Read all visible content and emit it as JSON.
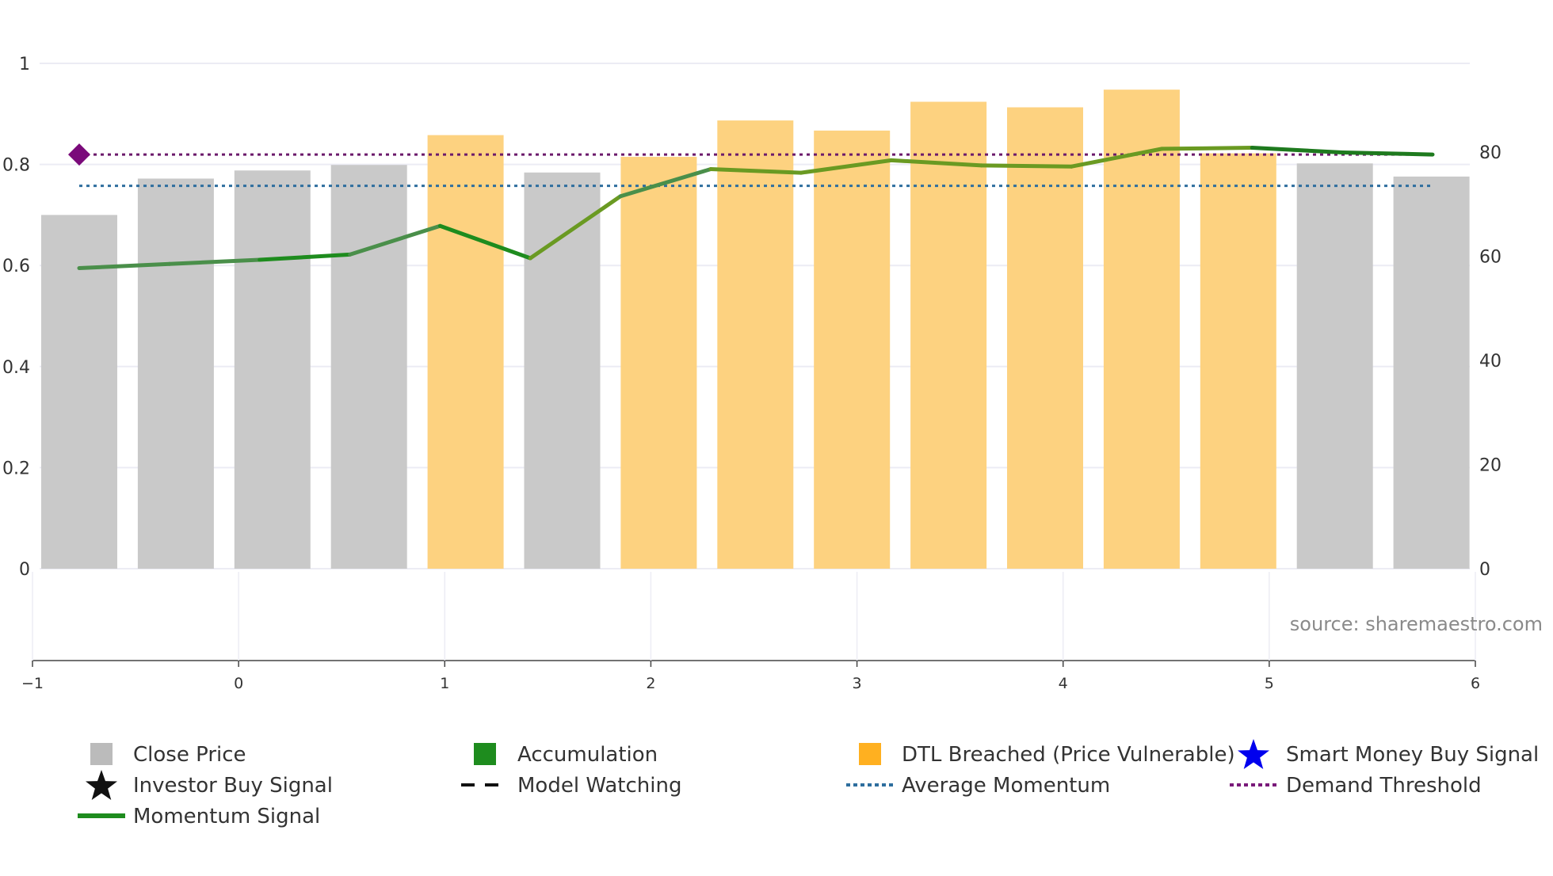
{
  "chart_data": {
    "type": "bar",
    "title": "",
    "source_label": "source: sharemaestro.com",
    "bars": [
      {
        "value": 0.7,
        "state": "close"
      },
      {
        "value": 0.772,
        "state": "close"
      },
      {
        "value": 0.788,
        "state": "close"
      },
      {
        "value": 0.799,
        "state": "close"
      },
      {
        "value": 0.858,
        "state": "dtl"
      },
      {
        "value": 0.784,
        "state": "close"
      },
      {
        "value": 0.815,
        "state": "dtl"
      },
      {
        "value": 0.887,
        "state": "dtl"
      },
      {
        "value": 0.867,
        "state": "dtl"
      },
      {
        "value": 0.924,
        "state": "dtl"
      },
      {
        "value": 0.913,
        "state": "dtl"
      },
      {
        "value": 0.948,
        "state": "dtl"
      },
      {
        "value": 0.822,
        "state": "dtl"
      },
      {
        "value": 0.802,
        "state": "close"
      },
      {
        "value": 0.776,
        "state": "close"
      }
    ],
    "momentum": [
      57.7,
      58.5,
      59.3,
      60.3,
      65.8,
      59.6,
      71.5,
      76.7,
      76.0,
      78.4,
      77.4,
      77.2,
      80.6,
      80.8,
      79.9,
      79.5
    ],
    "momentum_colors": [
      "#4a8f4a",
      "#4a8f4a",
      "#1e8c1e",
      "#4a8f4a",
      "#1e8c1e",
      "#6a9a22",
      "#4a8f4a",
      "#6a9a22",
      "#6a9a22",
      "#6a9a22",
      "#6a9a22",
      "#6a9a22",
      "#6a9a22",
      "#1e7a1e",
      "#1e7a1e"
    ],
    "average_momentum": 73.5,
    "demand_threshold": 79.5,
    "demand_marker_value": 79.5,
    "y_left": {
      "min": 0,
      "max": 1,
      "ticks": [
        "0",
        "0.2",
        "0.4",
        "0.6",
        "0.8",
        "1"
      ]
    },
    "y_right": {
      "min": 0,
      "max": 97,
      "ticks": [
        "0",
        "20",
        "40",
        "60",
        "80"
      ]
    },
    "x_axis": {
      "min": -1,
      "max": 6,
      "ticks": [
        "−1",
        "0",
        "1",
        "2",
        "3",
        "4",
        "5",
        "6"
      ]
    }
  },
  "legend": [
    {
      "id": "close-price",
      "label": "Close Price",
      "symbol": "square",
      "color": "#bbbbbb"
    },
    {
      "id": "accumulation",
      "label": "Accumulation",
      "symbol": "square",
      "color": "#1e8c1e"
    },
    {
      "id": "dtl-breached",
      "label": "DTL Breached (Price Vulnerable)",
      "symbol": "square",
      "color": "#ffb020"
    },
    {
      "id": "smart-money",
      "label": "Smart Money Buy Signal",
      "symbol": "star",
      "color": "#0000ee"
    },
    {
      "id": "investor-buy",
      "label": "Investor Buy Signal",
      "symbol": "star",
      "color": "#111111"
    },
    {
      "id": "model-watching",
      "label": "Model Watching",
      "symbol": "dash",
      "color": "#111111"
    },
    {
      "id": "average-momentum",
      "label": "Average Momentum",
      "symbol": "dots",
      "color": "#2e6e9e"
    },
    {
      "id": "demand-threshold",
      "label": "Demand Threshold",
      "symbol": "dots",
      "color": "#7a1a7a"
    },
    {
      "id": "momentum-signal",
      "label": "Momentum Signal",
      "symbol": "line",
      "color": "#1e8c1e"
    }
  ],
  "colors": {
    "close": "#c9c9c9",
    "dtl": "#fdd280",
    "average_line": "#2e6e9e",
    "demand_line": "#6b1a6b",
    "demand_marker": "#7a0a7a",
    "grid": "#ececf4"
  }
}
